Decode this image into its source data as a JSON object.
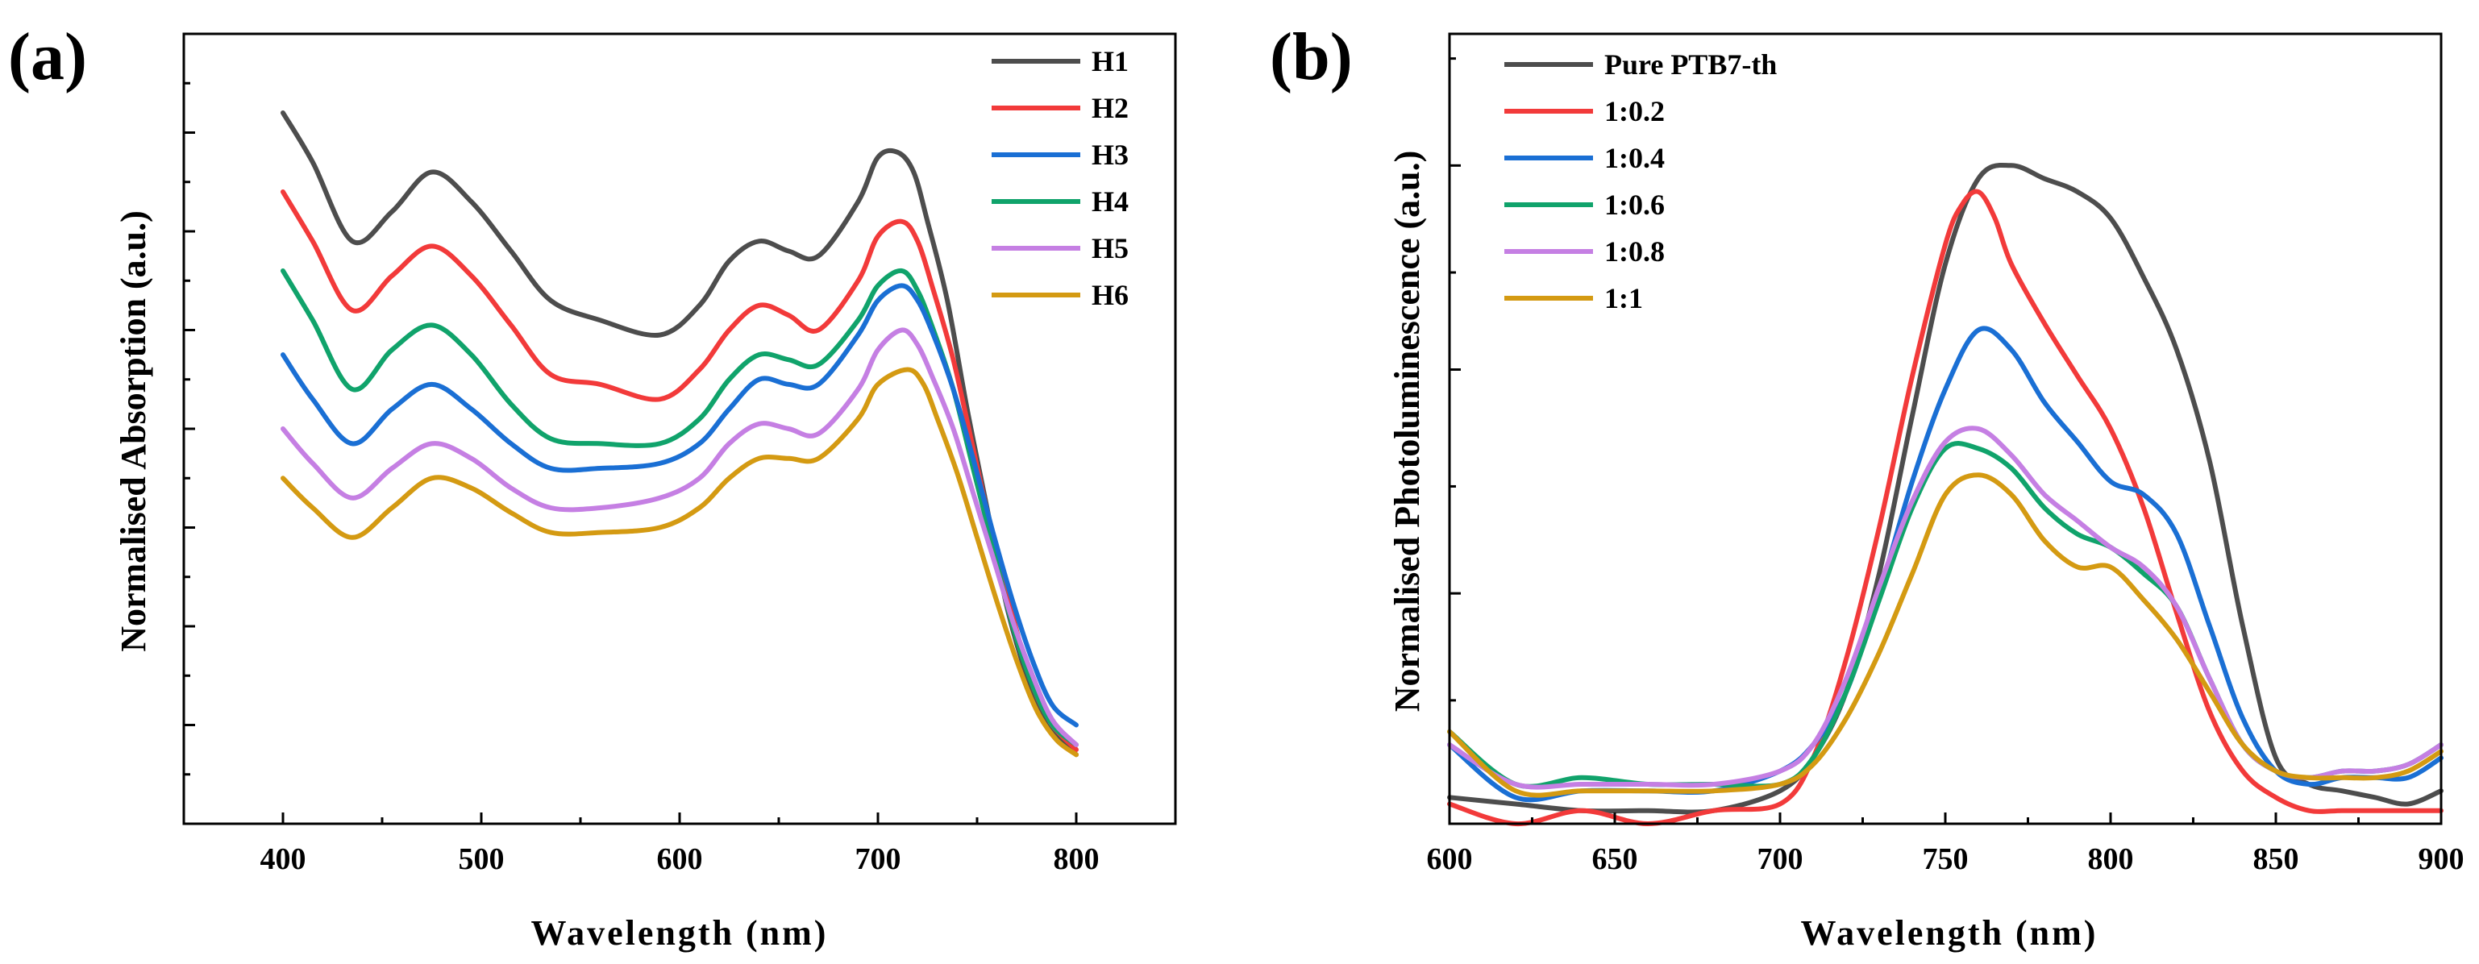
{
  "chart_data": [
    {
      "panel": "(a)",
      "type": "line",
      "xlabel": "Wavelength (nm)",
      "ylabel": "Normalised Absorption (a.u.)",
      "xlim": [
        350,
        850
      ],
      "ylim": [
        0,
        8
      ],
      "xticks": [
        400,
        500,
        600,
        700,
        800
      ],
      "yticks": [
        1,
        2,
        3,
        4,
        5,
        6,
        7
      ],
      "show_y_tick_labels": false,
      "legend_position": "top-right",
      "series": [
        {
          "name": "H1",
          "color": "#4d4d4d",
          "x": [
            400,
            415,
            435,
            455,
            475,
            495,
            515,
            535,
            560,
            590,
            610,
            625,
            640,
            655,
            670,
            690,
            700,
            710,
            718,
            725,
            735,
            745,
            755,
            765,
            775,
            785,
            800
          ],
          "y": [
            7.2,
            6.7,
            5.9,
            6.2,
            6.6,
            6.3,
            5.8,
            5.3,
            5.1,
            4.95,
            5.25,
            5.7,
            5.9,
            5.8,
            5.75,
            6.3,
            6.75,
            6.8,
            6.6,
            6.1,
            5.3,
            4.2,
            3.2,
            2.2,
            1.5,
            1.0,
            0.7
          ]
        },
        {
          "name": "H2",
          "color": "#f23a3a",
          "x": [
            400,
            415,
            435,
            455,
            475,
            495,
            515,
            535,
            560,
            590,
            610,
            625,
            640,
            655,
            670,
            690,
            700,
            712,
            720,
            728,
            738,
            748,
            758,
            768,
            778,
            788,
            800
          ],
          "y": [
            6.4,
            5.9,
            5.2,
            5.55,
            5.85,
            5.55,
            5.05,
            4.55,
            4.45,
            4.3,
            4.6,
            5.0,
            5.25,
            5.15,
            5.0,
            5.5,
            5.95,
            6.1,
            5.9,
            5.4,
            4.7,
            3.8,
            2.9,
            2.1,
            1.4,
            1.0,
            0.75
          ]
        },
        {
          "name": "H4",
          "color": "#10a36b",
          "x": [
            400,
            415,
            435,
            455,
            475,
            495,
            515,
            535,
            560,
            590,
            610,
            625,
            640,
            655,
            670,
            690,
            700,
            712,
            720,
            728,
            738,
            748,
            758,
            768,
            778,
            788,
            800
          ],
          "y": [
            5.6,
            5.1,
            4.4,
            4.8,
            5.05,
            4.75,
            4.25,
            3.9,
            3.85,
            3.85,
            4.1,
            4.5,
            4.75,
            4.7,
            4.65,
            5.1,
            5.45,
            5.6,
            5.4,
            5.0,
            4.4,
            3.6,
            2.8,
            2.0,
            1.4,
            1.0,
            0.8
          ]
        },
        {
          "name": "H3",
          "color": "#1a6fd4",
          "x": [
            400,
            415,
            435,
            455,
            475,
            495,
            515,
            535,
            560,
            590,
            610,
            625,
            640,
            655,
            670,
            690,
            700,
            712,
            720,
            728,
            738,
            748,
            758,
            768,
            778,
            788,
            800
          ],
          "y": [
            4.75,
            4.3,
            3.85,
            4.2,
            4.45,
            4.2,
            3.85,
            3.6,
            3.6,
            3.65,
            3.85,
            4.2,
            4.5,
            4.45,
            4.45,
            4.95,
            5.3,
            5.45,
            5.3,
            4.95,
            4.4,
            3.7,
            2.95,
            2.25,
            1.65,
            1.2,
            1.0
          ]
        },
        {
          "name": "H5",
          "color": "#c57fe3",
          "x": [
            400,
            415,
            435,
            455,
            475,
            495,
            515,
            535,
            560,
            590,
            610,
            625,
            640,
            655,
            670,
            690,
            700,
            712,
            720,
            728,
            738,
            748,
            758,
            768,
            778,
            788,
            800
          ],
          "y": [
            4.0,
            3.65,
            3.3,
            3.6,
            3.85,
            3.7,
            3.4,
            3.2,
            3.2,
            3.3,
            3.5,
            3.85,
            4.05,
            4.0,
            3.95,
            4.4,
            4.8,
            5.0,
            4.85,
            4.5,
            4.0,
            3.35,
            2.7,
            2.05,
            1.5,
            1.05,
            0.8
          ]
        },
        {
          "name": "H6",
          "color": "#d49a12",
          "x": [
            400,
            415,
            435,
            455,
            475,
            495,
            515,
            535,
            560,
            590,
            610,
            625,
            640,
            655,
            670,
            690,
            700,
            715,
            723,
            730,
            740,
            750,
            760,
            770,
            780,
            790,
            800
          ],
          "y": [
            3.5,
            3.2,
            2.9,
            3.2,
            3.5,
            3.4,
            3.15,
            2.95,
            2.95,
            3.0,
            3.2,
            3.5,
            3.7,
            3.7,
            3.7,
            4.1,
            4.45,
            4.6,
            4.45,
            4.1,
            3.55,
            2.9,
            2.25,
            1.65,
            1.15,
            0.85,
            0.7
          ]
        }
      ]
    },
    {
      "panel": "(b)",
      "type": "line",
      "xlabel": "Wavelength (nm)",
      "ylabel": "Normalised Photoluminescence (a.u.)",
      "xlim": [
        600,
        900
      ],
      "ylim": [
        0,
        1.2
      ],
      "xticks": [
        600,
        650,
        700,
        750,
        800,
        850,
        900
      ],
      "yticks": [
        0.35,
        0.69,
        1.0
      ],
      "show_y_tick_labels": false,
      "legend_position": "top-left",
      "series": [
        {
          "name": "Pure PTB7-th",
          "color": "#4d4d4d",
          "x": [
            600,
            620,
            640,
            660,
            680,
            700,
            710,
            720,
            730,
            740,
            750,
            760,
            770,
            780,
            790,
            800,
            810,
            820,
            830,
            840,
            850,
            860,
            870,
            880,
            890,
            900
          ],
          "y": [
            0.04,
            0.03,
            0.02,
            0.02,
            0.02,
            0.05,
            0.1,
            0.2,
            0.38,
            0.62,
            0.85,
            0.98,
            1.0,
            0.98,
            0.96,
            0.92,
            0.83,
            0.72,
            0.55,
            0.3,
            0.1,
            0.06,
            0.05,
            0.04,
            0.03,
            0.05
          ]
        },
        {
          "name": "1:0.2",
          "color": "#f23a3a",
          "x": [
            600,
            620,
            640,
            660,
            680,
            700,
            710,
            720,
            730,
            740,
            750,
            755,
            760,
            765,
            770,
            780,
            790,
            800,
            810,
            820,
            830,
            840,
            850,
            860,
            870,
            880,
            890,
            900
          ],
          "y": [
            0.03,
            0.0,
            0.02,
            0.0,
            0.02,
            0.03,
            0.1,
            0.25,
            0.45,
            0.68,
            0.88,
            0.94,
            0.96,
            0.92,
            0.85,
            0.76,
            0.68,
            0.6,
            0.48,
            0.32,
            0.17,
            0.08,
            0.04,
            0.02,
            0.02,
            0.02,
            0.02,
            0.02
          ]
        },
        {
          "name": "1:0.4",
          "color": "#1a6fd4",
          "x": [
            600,
            620,
            640,
            660,
            680,
            700,
            710,
            720,
            730,
            740,
            750,
            760,
            770,
            780,
            790,
            800,
            810,
            820,
            830,
            840,
            850,
            860,
            870,
            880,
            890,
            900
          ],
          "y": [
            0.12,
            0.04,
            0.05,
            0.05,
            0.05,
            0.08,
            0.12,
            0.2,
            0.35,
            0.52,
            0.66,
            0.75,
            0.72,
            0.64,
            0.58,
            0.52,
            0.5,
            0.44,
            0.3,
            0.16,
            0.08,
            0.06,
            0.07,
            0.07,
            0.07,
            0.1
          ]
        },
        {
          "name": "1:0.6",
          "color": "#10a36b",
          "x": [
            600,
            620,
            640,
            660,
            680,
            700,
            710,
            720,
            730,
            740,
            750,
            760,
            770,
            780,
            790,
            800,
            810,
            820,
            830,
            840,
            850,
            860,
            870,
            880,
            890,
            900
          ],
          "y": [
            0.14,
            0.06,
            0.07,
            0.06,
            0.06,
            0.06,
            0.1,
            0.2,
            0.34,
            0.48,
            0.57,
            0.57,
            0.54,
            0.48,
            0.44,
            0.42,
            0.38,
            0.33,
            0.22,
            0.12,
            0.08,
            0.07,
            0.08,
            0.08,
            0.09,
            0.12
          ]
        },
        {
          "name": "1:0.8",
          "color": "#c57fe3",
          "x": [
            600,
            620,
            640,
            660,
            680,
            700,
            710,
            720,
            730,
            740,
            750,
            760,
            770,
            780,
            790,
            800,
            810,
            820,
            830,
            840,
            850,
            860,
            870,
            880,
            890,
            900
          ],
          "y": [
            0.12,
            0.06,
            0.06,
            0.06,
            0.06,
            0.08,
            0.12,
            0.22,
            0.36,
            0.49,
            0.58,
            0.6,
            0.56,
            0.5,
            0.46,
            0.42,
            0.39,
            0.33,
            0.22,
            0.12,
            0.08,
            0.07,
            0.08,
            0.08,
            0.09,
            0.12
          ]
        },
        {
          "name": "1:1",
          "color": "#d49a12",
          "x": [
            600,
            620,
            640,
            660,
            680,
            700,
            710,
            720,
            730,
            740,
            750,
            760,
            770,
            780,
            790,
            800,
            810,
            820,
            830,
            840,
            850,
            860,
            870,
            880,
            890,
            900
          ],
          "y": [
            0.14,
            0.05,
            0.05,
            0.05,
            0.05,
            0.06,
            0.09,
            0.16,
            0.26,
            0.38,
            0.5,
            0.53,
            0.5,
            0.43,
            0.39,
            0.39,
            0.34,
            0.28,
            0.2,
            0.12,
            0.08,
            0.07,
            0.07,
            0.07,
            0.08,
            0.11
          ]
        }
      ]
    }
  ]
}
